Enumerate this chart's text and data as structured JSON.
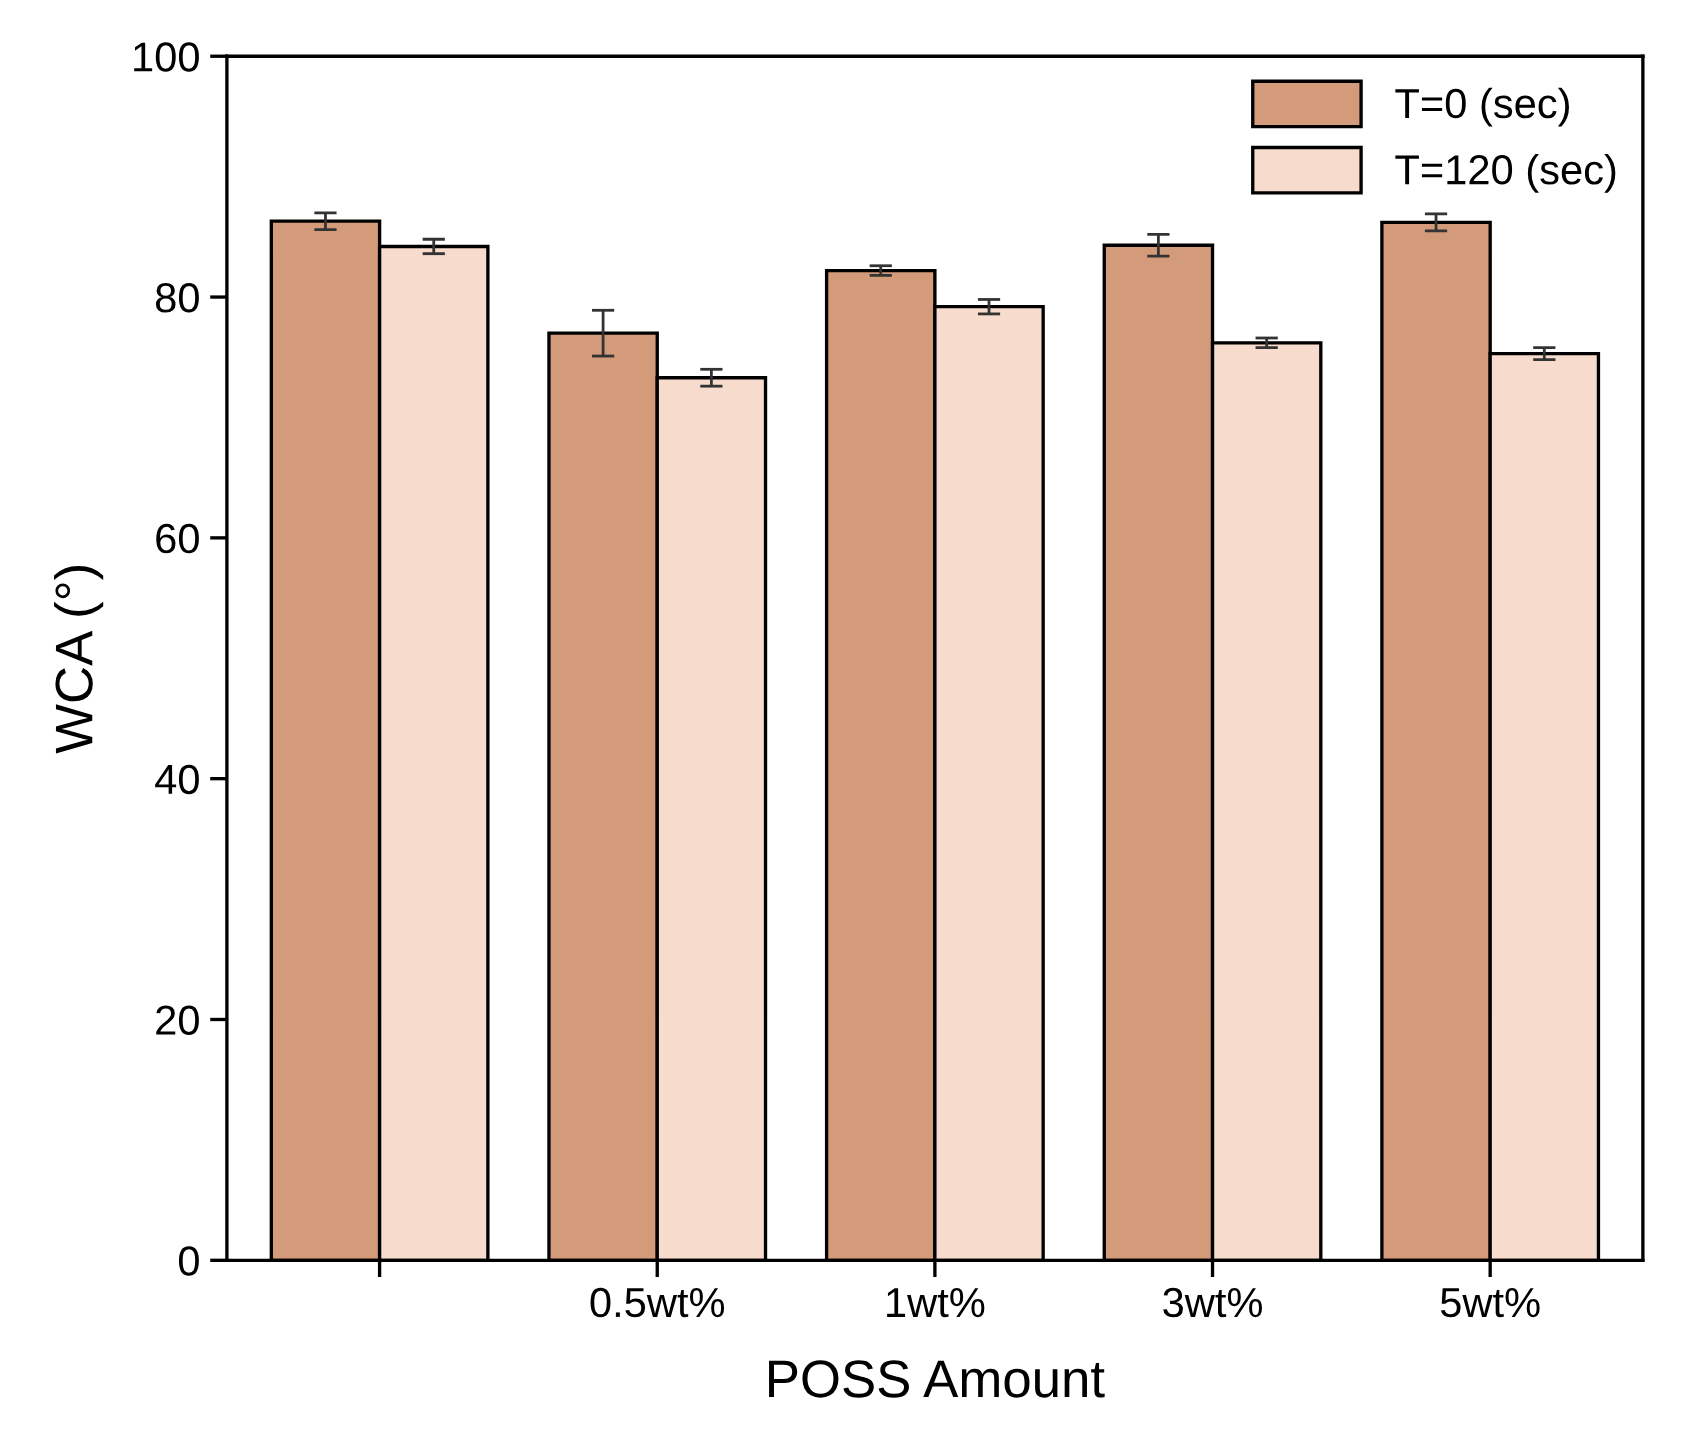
{
  "chart_data": {
    "type": "bar",
    "xlabel": "POSS Amount",
    "ylabel": "WCA (°)",
    "categories": [
      null,
      "0.5wt%",
      "1wt%",
      "3wt%",
      "5wt%"
    ],
    "series": [
      {
        "name": "T=0 (sec)",
        "color": "#d49b7a",
        "values": [
          86.3,
          77.0,
          82.2,
          84.3,
          86.2
        ],
        "errors": [
          0.7,
          1.9,
          0.4,
          0.9,
          0.7
        ]
      },
      {
        "name": "T=120 (sec)",
        "color": "#f7dccd",
        "values": [
          84.2,
          73.3,
          79.2,
          76.2,
          75.3
        ],
        "errors": [
          0.6,
          0.7,
          0.6,
          0.4,
          0.5
        ]
      }
    ],
    "ylim": [
      0,
      100
    ],
    "yticks": [
      0,
      20,
      40,
      60,
      80,
      100
    ],
    "grid": false,
    "legend": "top right"
  }
}
